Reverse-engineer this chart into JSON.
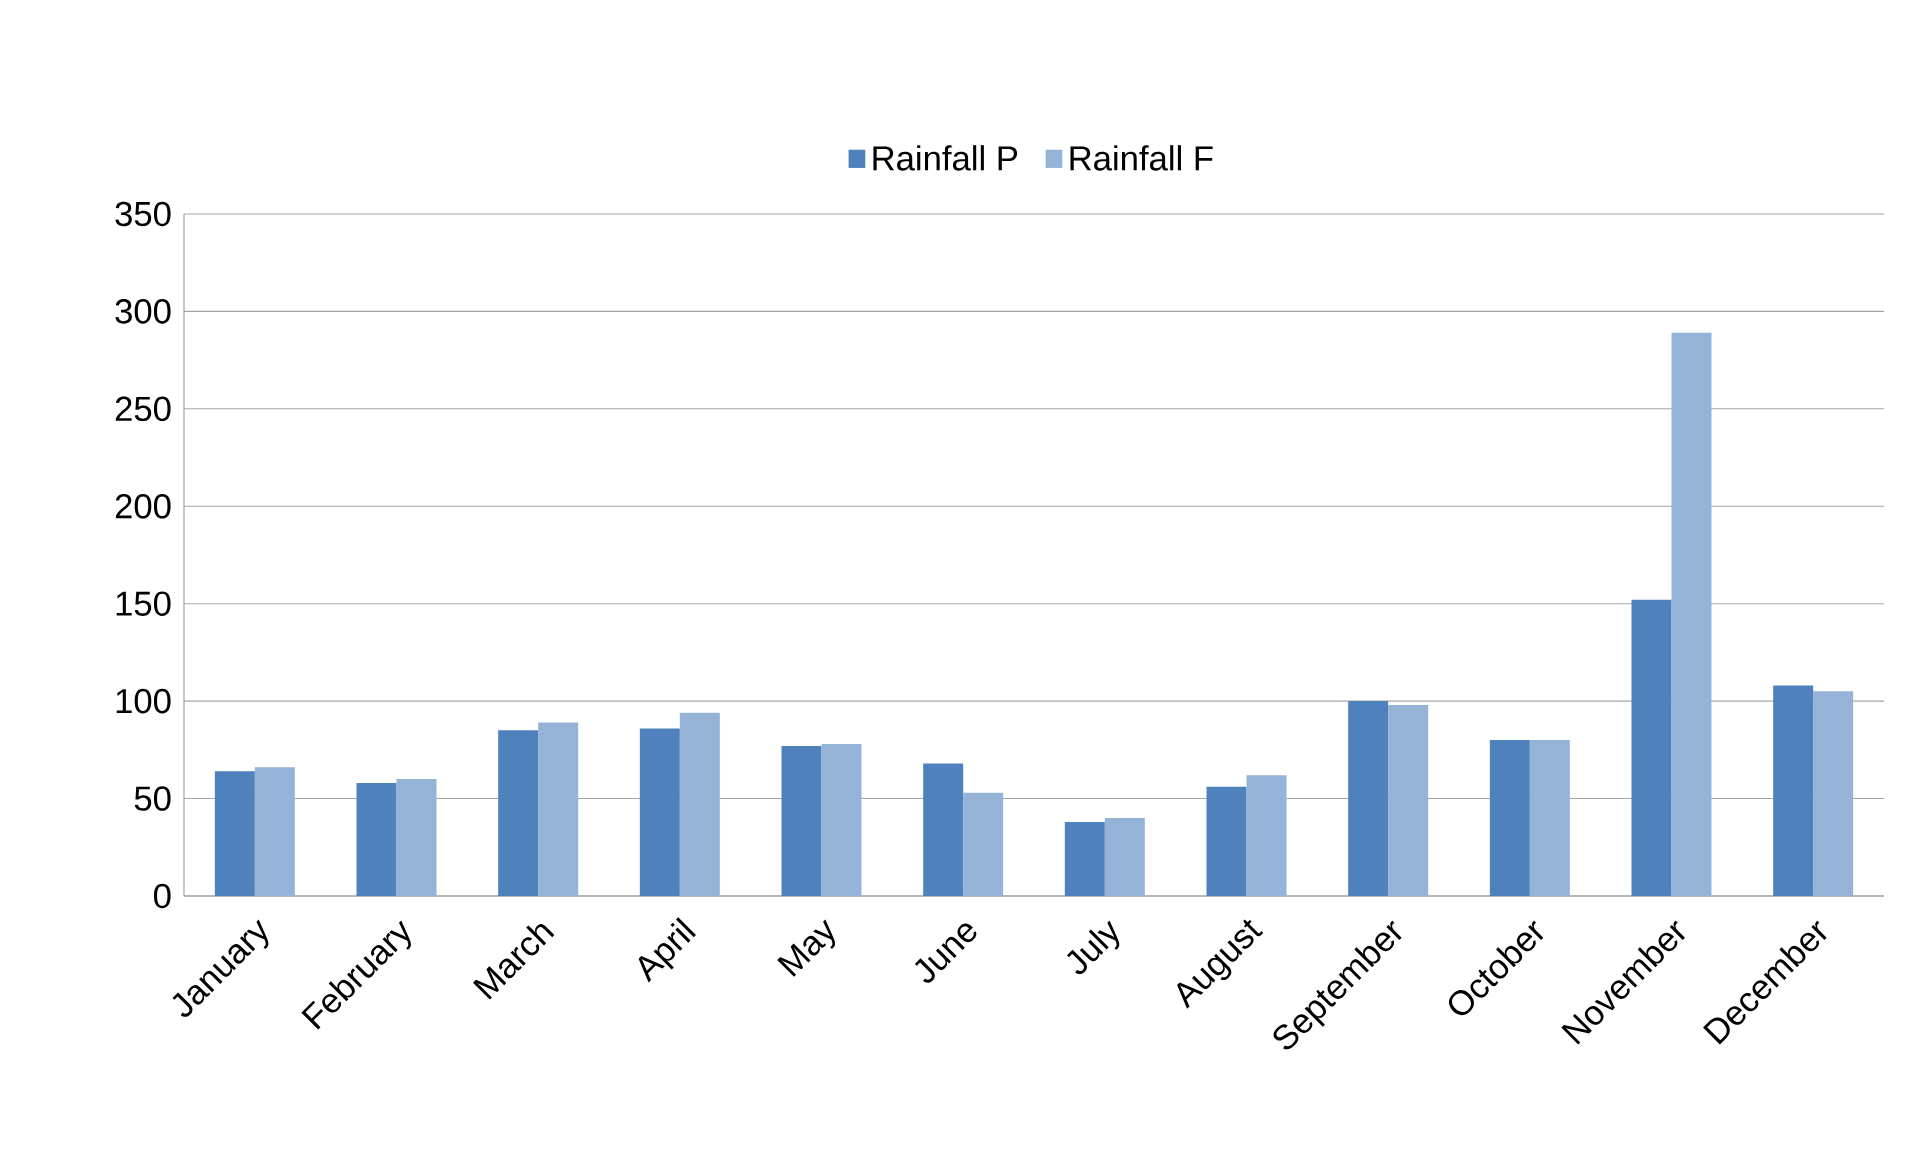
{
  "chart_data": {
    "type": "bar",
    "categories": [
      "January",
      "February",
      "March",
      "April",
      "May",
      "June",
      "July",
      "August",
      "September",
      "October",
      "November",
      "December"
    ],
    "series": [
      {
        "name": "Rainfall P",
        "color": "#4f81bd",
        "values": [
          64,
          58,
          85,
          86,
          77,
          68,
          38,
          56,
          100,
          80,
          152,
          108
        ]
      },
      {
        "name": "Rainfall F",
        "color": "#95b3d7",
        "values": [
          66,
          60,
          89,
          94,
          78,
          53,
          40,
          62,
          98,
          80,
          289,
          105
        ]
      }
    ],
    "ylim": [
      0,
      350
    ],
    "yticks": [
      0,
      50,
      100,
      150,
      200,
      250,
      300,
      350
    ],
    "grid": "y",
    "legend": "top"
  }
}
